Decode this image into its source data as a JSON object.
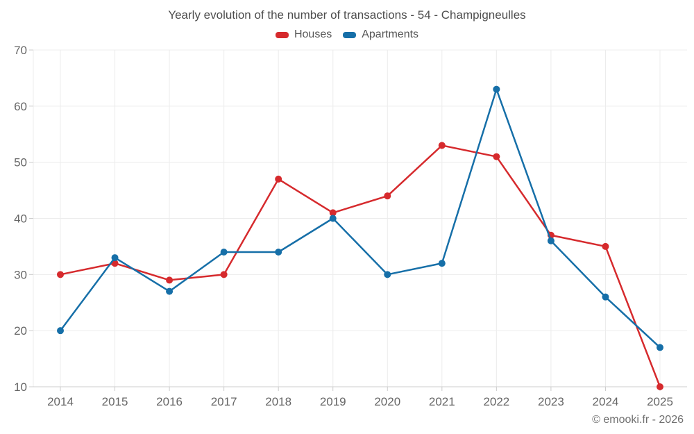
{
  "title": "Yearly evolution of the number of transactions - 54 - Champigneulles",
  "legend": [
    {
      "label": "Houses",
      "color": "#d62a2d"
    },
    {
      "label": "Apartments",
      "color": "#166fa8"
    }
  ],
  "copyright": "© emooki.fr - 2026",
  "chart_data": {
    "type": "line",
    "x": [
      "2014",
      "2015",
      "2016",
      "2017",
      "2018",
      "2019",
      "2020",
      "2021",
      "2022",
      "2023",
      "2024",
      "2025"
    ],
    "series": [
      {
        "name": "Houses",
        "color": "#d62a2d",
        "values": [
          30,
          32,
          29,
          30,
          47,
          41,
          44,
          53,
          51,
          37,
          35,
          10
        ]
      },
      {
        "name": "Apartments",
        "color": "#166fa8",
        "values": [
          20,
          33,
          27,
          34,
          34,
          40,
          30,
          32,
          63,
          36,
          26,
          17
        ]
      }
    ],
    "title": "Yearly evolution of the number of transactions - 54 - Champigneulles",
    "xlabel": "",
    "ylabel": "",
    "ylim": [
      10,
      70
    ],
    "ytick_step": 10,
    "grid": true,
    "legend_position": "top",
    "marker": "circle"
  },
  "colors": {
    "grid": "#ececec",
    "axis_line": "#cccccc",
    "tick": "#cccccc",
    "axis_text": "#666666",
    "title_text": "#4d4d4d",
    "legend_text": "#555555",
    "copyright_text": "#707070"
  }
}
